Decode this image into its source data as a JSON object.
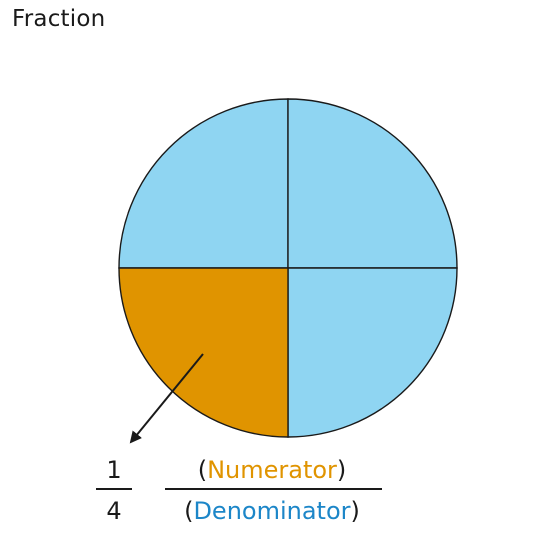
{
  "title": "Fraction",
  "fraction": {
    "numerator": "1",
    "denominator": "4",
    "numerator_caption": {
      "open": "(",
      "word": "Numerator",
      "close": ")"
    },
    "denominator_caption": {
      "open": "(",
      "word": "Denominator",
      "close": ")"
    }
  },
  "circle": {
    "parts_total": 4,
    "parts_shaded": 1
  },
  "colors": {
    "unshaded_fill": "#8fd5f2",
    "shaded_fill": "#e09400",
    "numerator_word": "#e09400",
    "denominator_word": "#1c86c8",
    "ink": "#1a1a1a"
  }
}
